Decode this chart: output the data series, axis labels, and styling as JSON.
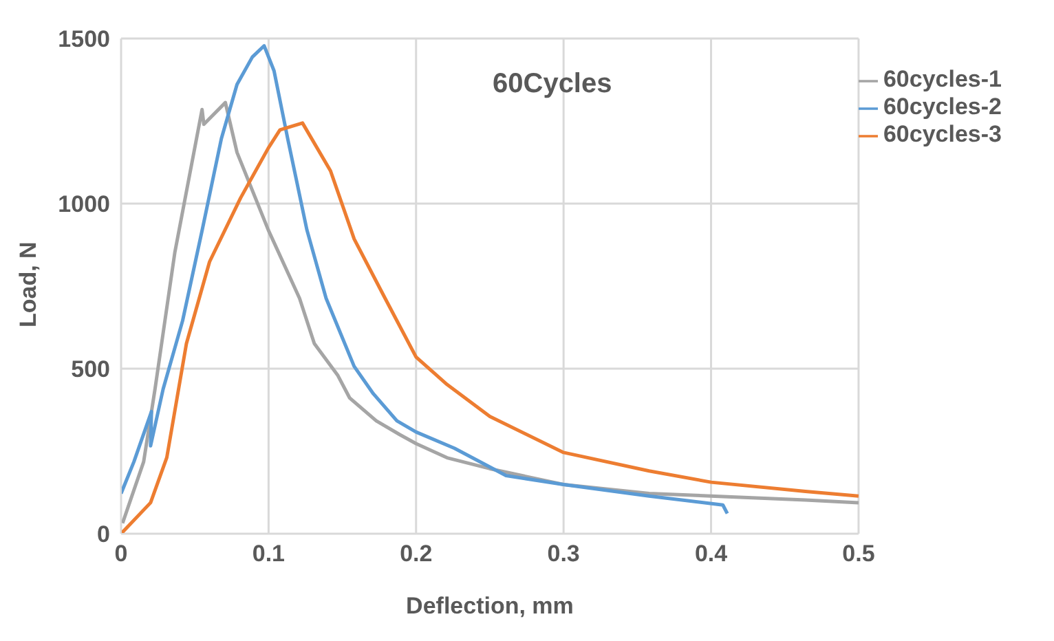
{
  "chart_data": {
    "type": "line",
    "xlabel": "Deflection, mm",
    "ylabel": "Load, N",
    "annotations": [
      "60Cycles"
    ],
    "xlim": [
      0,
      0.5
    ],
    "xticks": [
      0,
      0.1,
      0.2,
      0.3,
      0.4,
      0.5
    ],
    "ylim": [
      0,
      1500
    ],
    "yticks": [
      0,
      500,
      1000,
      1500
    ],
    "grid": true,
    "legend": "top right",
    "marker": "none",
    "line_style": "solid",
    "series": [
      {
        "name": "60cycles-1",
        "color": "#a5a5a5",
        "x": [
          0.001,
          0.0153,
          0.023,
          0.0364,
          0.0549,
          0.0561,
          0.0707,
          0.0786,
          0.0998,
          0.121,
          0.131,
          0.147,
          0.155,
          0.173,
          0.189,
          0.2,
          0.221,
          0.25,
          0.3,
          0.358,
          0.4,
          0.464,
          0.5
        ],
        "values": [
          32,
          218,
          438,
          851,
          1285,
          1240,
          1306,
          1155,
          920,
          713,
          576,
          479,
          411,
          342,
          300,
          273,
          230,
          197,
          149,
          122,
          114,
          102,
          94
        ]
      },
      {
        "name": "60cycles-2",
        "color": "#5b9bd5",
        "x": [
          0,
          0.0087,
          0.0206,
          0.02,
          0.0285,
          0.0417,
          0.055,
          0.068,
          0.0786,
          0.089,
          0.097,
          0.1037,
          0.113,
          0.126,
          0.139,
          0.158,
          0.171,
          0.187,
          0.2,
          0.226,
          0.261,
          0.3,
          0.358,
          0.408,
          0.411
        ],
        "values": [
          122,
          218,
          370,
          266,
          438,
          645,
          920,
          1197,
          1361,
          1444,
          1478,
          1402,
          1196,
          920,
          713,
          507,
          424,
          342,
          308,
          259,
          176,
          149,
          114,
          87,
          61
        ]
      },
      {
        "name": "60cycles-3",
        "color": "#ed7d31",
        "x": [
          0,
          0.02,
          0.031,
          0.0443,
          0.06,
          0.081,
          0.0998,
          0.1077,
          0.123,
          0.142,
          0.158,
          0.179,
          0.2,
          0.221,
          0.25,
          0.3,
          0.358,
          0.4,
          0.464,
          0.5
        ],
        "values": [
          0,
          94,
          231,
          576,
          824,
          1017,
          1168,
          1223,
          1244,
          1099,
          893,
          713,
          535,
          452,
          355,
          246,
          190,
          156,
          128,
          114
        ]
      }
    ]
  }
}
